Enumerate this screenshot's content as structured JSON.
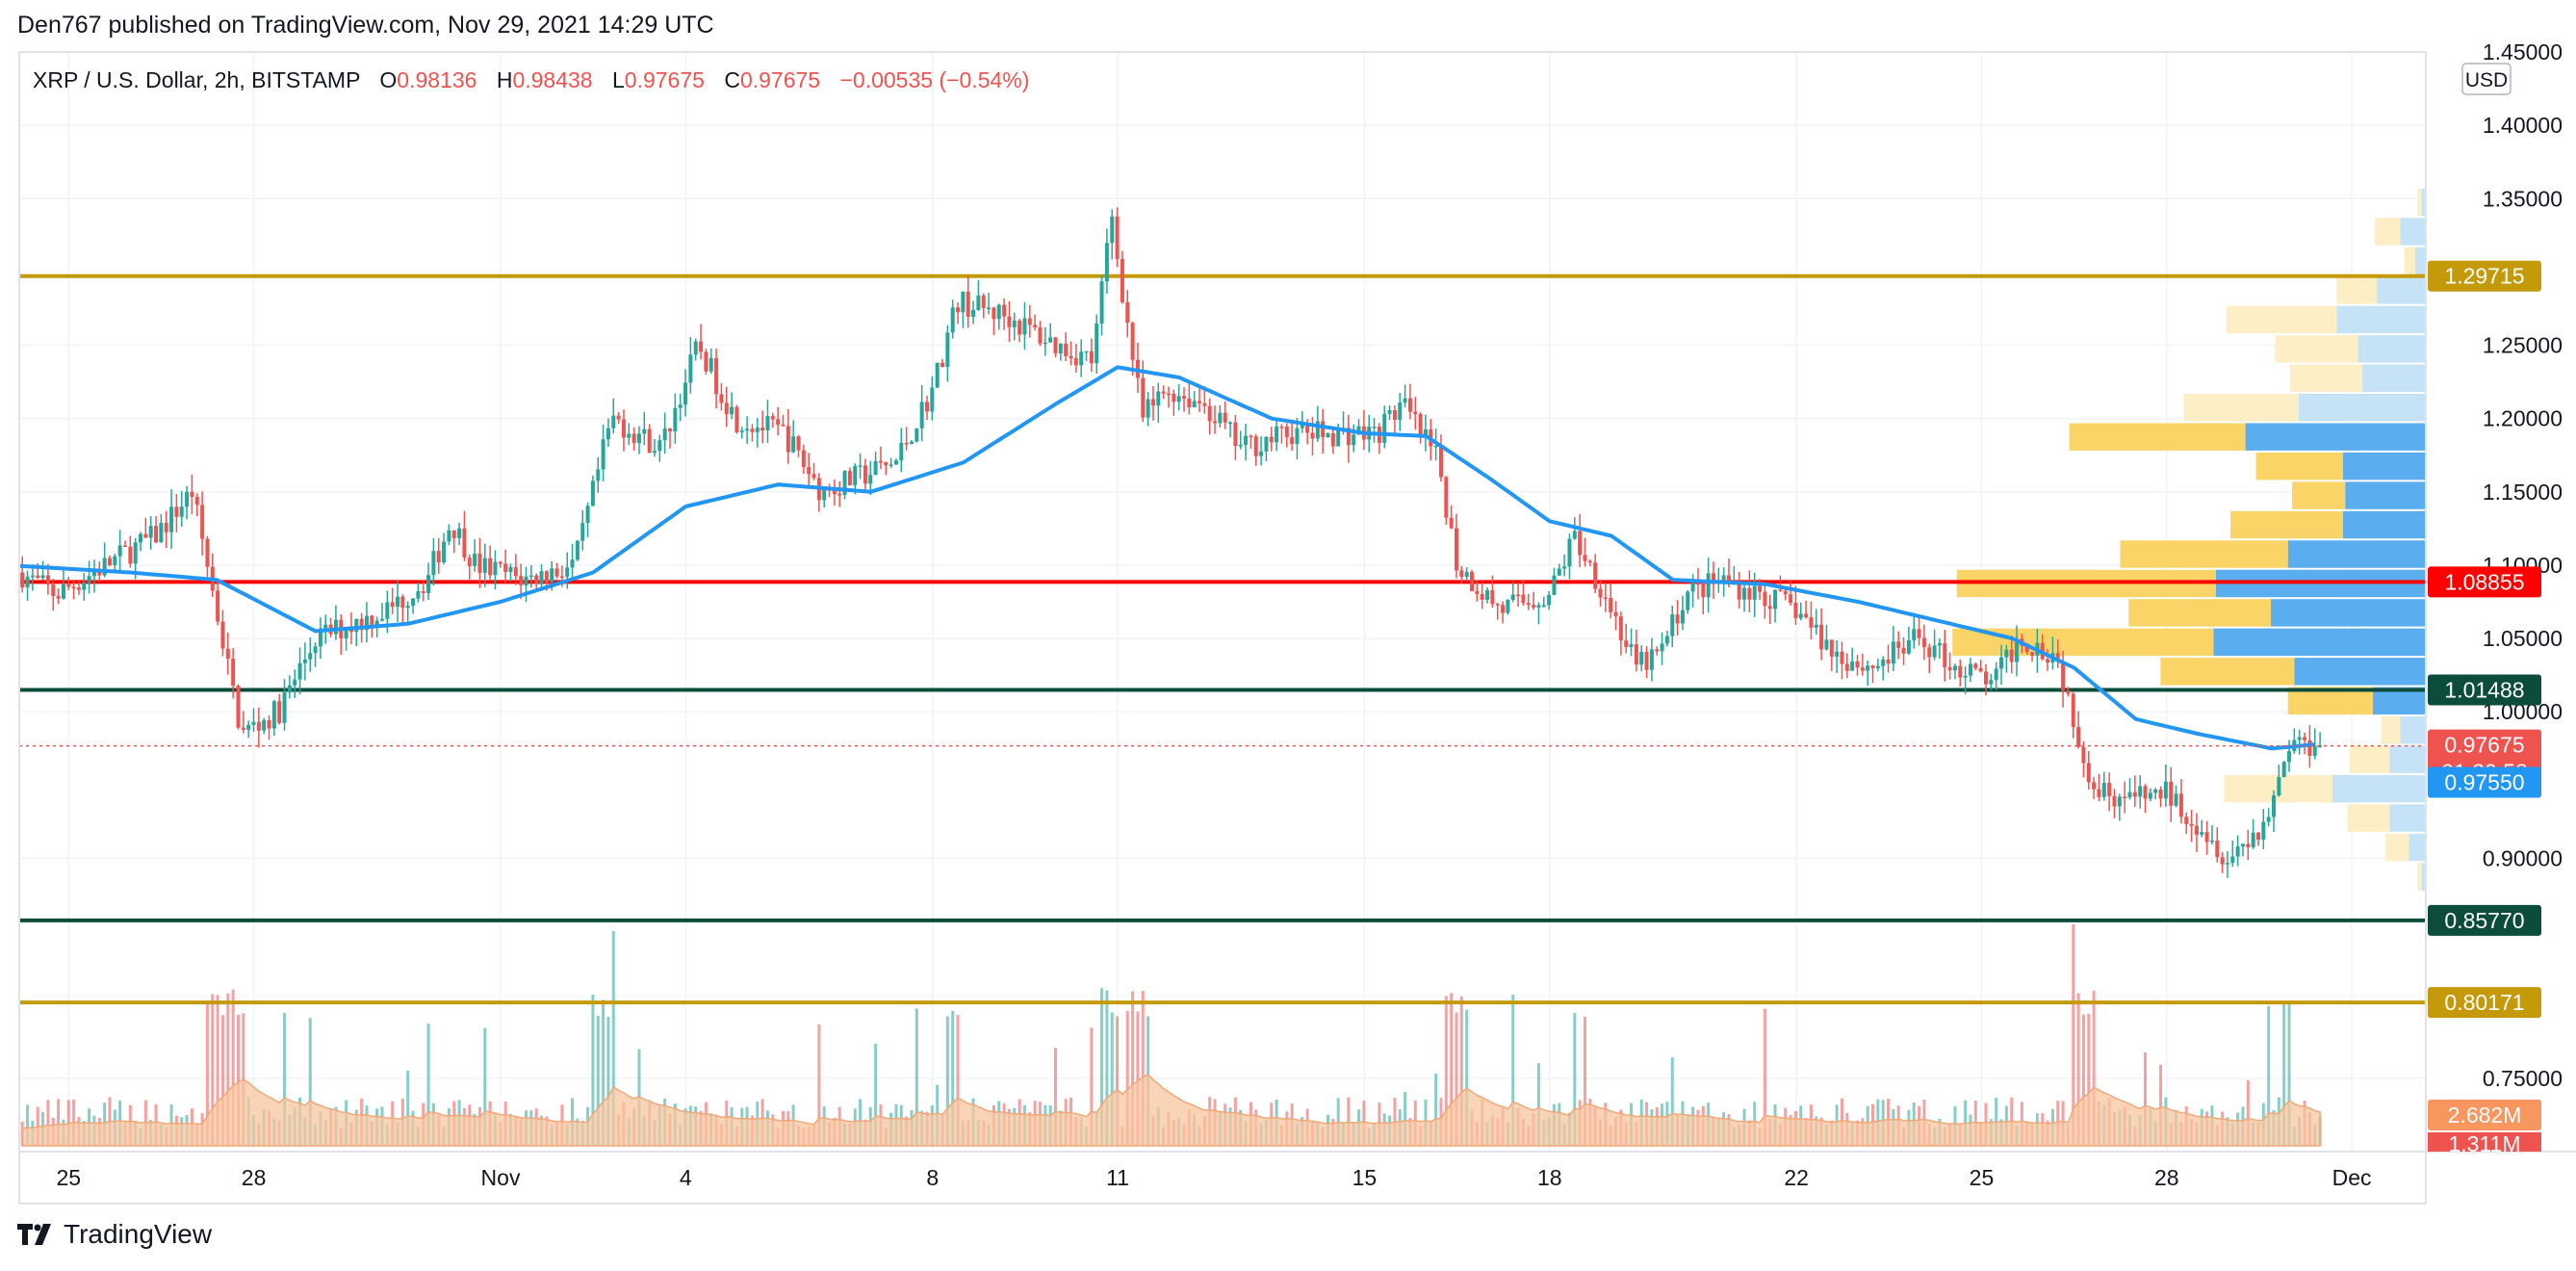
{
  "header": "Den767 published on TradingView.com, Nov 29, 2021 14:29 UTC",
  "legend": {
    "symbol": "XRP / U.S. Dollar, 2h, BITSTAMP",
    "open_label": "O",
    "open": "0.98136",
    "high_label": "H",
    "high": "0.98438",
    "low_label": "L",
    "low": "0.97675",
    "close_label": "C",
    "close": "0.97675",
    "change": "−0.00535 (−0.54%)"
  },
  "footer": {
    "brand": "TradingView"
  },
  "colors": {
    "up": "#26a69a",
    "down": "#ef5350",
    "ma": "#2196f3",
    "gold_line": "#c49a0a",
    "red_line": "#ff0000",
    "green_line": "#0b4d3a",
    "vol_ma_fill": "#f7c59f",
    "vp_up": "#5aaef0",
    "vp_down": "#fbd467",
    "vp_up_light": "#c6e2f7",
    "vp_down_light": "#fdeec6"
  },
  "chart_data": {
    "type": "candlestick",
    "title": "XRP / U.S. Dollar, 2h, BITSTAMP",
    "currency": "USD",
    "y_ticks": [
      "1.45000",
      "1.40000",
      "1.35000",
      "1.25000",
      "1.20000",
      "1.15000",
      "1.10000",
      "1.05000",
      "1.00000",
      "0.90000",
      "0.75000"
    ],
    "ylim": [
      0.7,
      1.45
    ],
    "x_ticks": [
      "25",
      "28",
      "Nov",
      "4",
      "8",
      "11",
      "15",
      "18",
      "22",
      "25",
      "28",
      "Dec"
    ],
    "x_tick_days": [
      -7,
      -4,
      0,
      3,
      7,
      10,
      14,
      17,
      21,
      24,
      27,
      30
    ],
    "xlim_days": [
      -7.8,
      31.2
    ],
    "price_path": [
      [
        -8.0,
        1.1
      ],
      [
        -7.2,
        1.08
      ],
      [
        -6.4,
        1.1
      ],
      [
        -5.6,
        1.12
      ],
      [
        -5.0,
        1.15
      ],
      [
        -4.8,
        1.11
      ],
      [
        -4.2,
        0.985
      ],
      [
        -3.6,
        1.0
      ],
      [
        -3.0,
        1.05
      ],
      [
        -2.4,
        1.06
      ],
      [
        -1.8,
        1.07
      ],
      [
        -1.2,
        1.09
      ],
      [
        -0.8,
        1.13
      ],
      [
        -0.4,
        1.1
      ],
      [
        0.4,
        1.09
      ],
      [
        1.2,
        1.1
      ],
      [
        1.8,
        1.2
      ],
      [
        2.6,
        1.18
      ],
      [
        3.2,
        1.25
      ],
      [
        3.8,
        1.2
      ],
      [
        4.6,
        1.19
      ],
      [
        5.2,
        1.15
      ],
      [
        5.8,
        1.16
      ],
      [
        6.4,
        1.17
      ],
      [
        7.0,
        1.22
      ],
      [
        7.4,
        1.28
      ],
      [
        8.2,
        1.27
      ],
      [
        9.0,
        1.25
      ],
      [
        9.6,
        1.24
      ],
      [
        9.9,
        1.34
      ],
      [
        10.1,
        1.28
      ],
      [
        10.4,
        1.2
      ],
      [
        10.8,
        1.22
      ],
      [
        11.4,
        1.21
      ],
      [
        12.0,
        1.18
      ],
      [
        12.8,
        1.19
      ],
      [
        13.6,
        1.19
      ],
      [
        14.2,
        1.19
      ],
      [
        14.6,
        1.21
      ],
      [
        15.2,
        1.17
      ],
      [
        15.5,
        1.1
      ],
      [
        16.2,
        1.07
      ],
      [
        17.0,
        1.08
      ],
      [
        17.4,
        1.12
      ],
      [
        17.9,
        1.08
      ],
      [
        18.4,
        1.03
      ],
      [
        18.8,
        1.04
      ],
      [
        19.2,
        1.08
      ],
      [
        19.8,
        1.09
      ],
      [
        20.4,
        1.08
      ],
      [
        21.0,
        1.07
      ],
      [
        21.6,
        1.04
      ],
      [
        22.2,
        1.03
      ],
      [
        23.0,
        1.05
      ],
      [
        23.6,
        1.03
      ],
      [
        24.2,
        1.02
      ],
      [
        24.6,
        1.05
      ],
      [
        25.2,
        1.04
      ],
      [
        25.6,
        0.98
      ],
      [
        25.8,
        0.95
      ],
      [
        26.4,
        0.94
      ],
      [
        27.0,
        0.945
      ],
      [
        27.6,
        0.92
      ],
      [
        28.0,
        0.9
      ],
      [
        28.6,
        0.925
      ],
      [
        29.0,
        0.98
      ],
      [
        29.5,
        0.977
      ]
    ],
    "ma_path": [
      [
        -8.0,
        1.1
      ],
      [
        -6.0,
        1.095
      ],
      [
        -4.6,
        1.09
      ],
      [
        -3.0,
        1.055
      ],
      [
        -1.5,
        1.06
      ],
      [
        0.0,
        1.075
      ],
      [
        1.5,
        1.095
      ],
      [
        3.0,
        1.14
      ],
      [
        4.5,
        1.155
      ],
      [
        6.0,
        1.15
      ],
      [
        7.5,
        1.17
      ],
      [
        9.0,
        1.21
      ],
      [
        10.0,
        1.235
      ],
      [
        11.0,
        1.228
      ],
      [
        12.5,
        1.2
      ],
      [
        14.0,
        1.19
      ],
      [
        15.0,
        1.188
      ],
      [
        16.0,
        1.16
      ],
      [
        17.0,
        1.13
      ],
      [
        18.0,
        1.12
      ],
      [
        19.0,
        1.09
      ],
      [
        20.5,
        1.087
      ],
      [
        22.0,
        1.075
      ],
      [
        23.5,
        1.06
      ],
      [
        24.5,
        1.05
      ],
      [
        25.5,
        1.03
      ],
      [
        26.5,
        0.995
      ],
      [
        27.5,
        0.985
      ],
      [
        28.7,
        0.975
      ],
      [
        29.5,
        0.978
      ]
    ],
    "last_price": {
      "price": 0.97675,
      "label": "0.97675",
      "countdown": "01:30:58"
    },
    "levels": [
      {
        "price": 1.29715,
        "label": "1.29715",
        "color": "#c49a0a"
      },
      {
        "price": 1.08855,
        "label": "1.08855",
        "color": "#ff0000"
      },
      {
        "price": 1.01488,
        "label": "1.01488",
        "color": "#0b4d3a"
      },
      {
        "price": 0.8577,
        "label": "0.85770",
        "color": "#0b4d3a"
      },
      {
        "price": 0.80171,
        "label": "0.80171",
        "color": "#c49a0a"
      }
    ],
    "ma_label": {
      "price": 0.9755,
      "label": "0.97550"
    },
    "volume": {
      "ma_label": "2.682M",
      "last_label": "1.311M"
    },
    "volume_profile": [
      {
        "price": 1.3475,
        "up": 0.02,
        "down": 0.02,
        "strong": false
      },
      {
        "price": 1.3275,
        "up": 0.12,
        "down": 0.12,
        "strong": false
      },
      {
        "price": 1.3075,
        "up": 0.05,
        "down": 0.05,
        "strong": false
      },
      {
        "price": 1.2875,
        "up": 0.23,
        "down": 0.19,
        "strong": false
      },
      {
        "price": 1.2675,
        "up": 0.42,
        "down": 0.52,
        "strong": false
      },
      {
        "price": 1.2475,
        "up": 0.32,
        "down": 0.39,
        "strong": false
      },
      {
        "price": 1.2275,
        "up": 0.3,
        "down": 0.34,
        "strong": false
      },
      {
        "price": 1.2075,
        "up": 0.6,
        "down": 0.54,
        "strong": false
      },
      {
        "price": 1.1875,
        "up": 0.85,
        "down": 0.83,
        "strong": true
      },
      {
        "price": 1.1675,
        "up": 0.39,
        "down": 0.41,
        "strong": true
      },
      {
        "price": 1.1475,
        "up": 0.38,
        "down": 0.25,
        "strong": true
      },
      {
        "price": 1.1275,
        "up": 0.39,
        "down": 0.53,
        "strong": true
      },
      {
        "price": 1.1075,
        "up": 0.65,
        "down": 0.79,
        "strong": true
      },
      {
        "price": 1.0875,
        "up": 0.99,
        "down": 1.22,
        "strong": true
      },
      {
        "price": 1.0675,
        "up": 0.73,
        "down": 0.67,
        "strong": true
      },
      {
        "price": 1.0475,
        "up": 1.0,
        "down": 1.23,
        "strong": true
      },
      {
        "price": 1.0275,
        "up": 0.62,
        "down": 0.63,
        "strong": true
      },
      {
        "price": 1.0075,
        "up": 0.25,
        "down": 0.4,
        "strong": true
      },
      {
        "price": 0.9875,
        "up": 0.12,
        "down": 0.09,
        "strong": false
      },
      {
        "price": 0.9675,
        "up": 0.17,
        "down": 0.19,
        "strong": false
      },
      {
        "price": 0.9475,
        "up": 0.44,
        "down": 0.51,
        "strong": false
      },
      {
        "price": 0.9275,
        "up": 0.17,
        "down": 0.2,
        "strong": false
      },
      {
        "price": 0.9075,
        "up": 0.08,
        "down": 0.11,
        "strong": false
      },
      {
        "price": 0.8875,
        "up": 0.02,
        "down": 0.02,
        "strong": false
      }
    ]
  }
}
